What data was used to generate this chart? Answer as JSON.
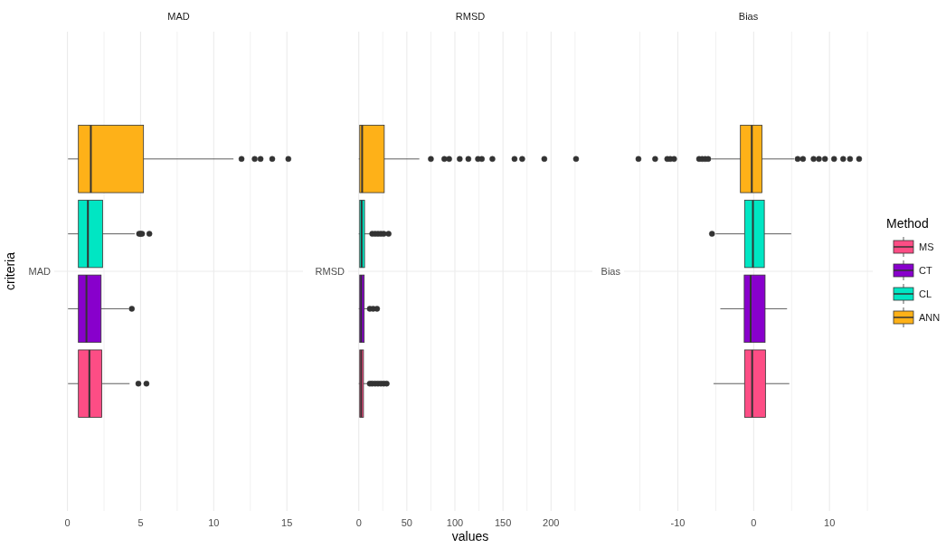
{
  "chart_data": [
    {
      "type": "box",
      "title": "MAD",
      "ylabel": "criteria",
      "orientation": "horizontal",
      "categories": [
        "MAD"
      ],
      "xlim": [
        -0.9,
        16.1
      ],
      "xticks": [
        0,
        {
          "value": 2.5,
          "label": null
        },
        5,
        {
          "value": 7.5,
          "label": null
        },
        10,
        {
          "value": 12.5,
          "label": null
        },
        15
      ],
      "grid": true,
      "series": [
        {
          "color": "#fd4d85",
          "boxes": [
            {
              "low": 0.04,
              "q1": 0.75,
              "median": 1.5,
              "q3": 2.35,
              "high": 4.25,
              "outliers": [
                4.85,
                5.4
              ]
            }
          ]
        },
        {
          "color": "#8800cc",
          "boxes": [
            {
              "low": 0.04,
              "q1": 0.75,
              "median": 1.3,
              "q3": 2.3,
              "high": 4.2,
              "outliers": [
                4.4
              ]
            }
          ]
        },
        {
          "color": "#00e6c3",
          "boxes": [
            {
              "low": 0.04,
              "q1": 0.75,
              "median": 1.4,
              "q3": 2.4,
              "high": 4.6,
              "outliers": [
                4.9,
                5.0,
                5.1,
                5.6
              ]
            }
          ]
        },
        {
          "color": "#feb118",
          "boxes": [
            {
              "low": 0.04,
              "q1": 0.75,
              "median": 1.6,
              "q3": 5.2,
              "high": 11.35,
              "outliers": [
                11.9,
                12.8,
                13.2,
                14.0,
                15.1
              ]
            }
          ]
        }
      ]
    },
    {
      "type": "box",
      "title": "RMSD",
      "xlabel": "values",
      "orientation": "horizontal",
      "categories": [
        "RMSD"
      ],
      "xlim": [
        -11,
        243
      ],
      "xticks": [
        0,
        {
          "value": 25,
          "label": null
        },
        50,
        {
          "value": 75,
          "label": null
        },
        100,
        {
          "value": 125,
          "label": null
        },
        150,
        {
          "value": 175,
          "label": null
        },
        200,
        {
          "value": 225,
          "label": null
        }
      ],
      "grid": true,
      "series": [
        {
          "color": "#fd4d85",
          "boxes": [
            {
              "low": 0,
              "q1": 1,
              "median": 2.5,
              "q3": 4.9,
              "high": 9.6,
              "outliers": [
                11.5,
                14,
                17,
                20,
                23,
                26,
                29
              ]
            }
          ]
        },
        {
          "color": "#8800cc",
          "boxes": [
            {
              "low": 0,
              "q1": 1,
              "median": 2.5,
              "q3": 5.6,
              "high": 9.3,
              "outliers": [
                11.5,
                15,
                19
              ]
            }
          ]
        },
        {
          "color": "#00e6c3",
          "boxes": [
            {
              "low": 0,
              "q1": 1,
              "median": 3,
              "q3": 6,
              "high": 12,
              "outliers": [
                14,
                17,
                20,
                23,
                26,
                31
              ]
            }
          ]
        },
        {
          "color": "#feb118",
          "boxes": [
            {
              "low": 0,
              "q1": 1,
              "median": 3.5,
              "q3": 26.5,
              "high": 63,
              "outliers": [
                75,
                89,
                94,
                105,
                114,
                124,
                128,
                139,
                162,
                170,
                193,
                226
              ]
            }
          ]
        }
      ]
    },
    {
      "type": "box",
      "title": "Bias",
      "legend_title": "Method",
      "legend": "right",
      "orientation": "horizontal",
      "categories": [
        "Bias"
      ],
      "xlim": [
        -17.1,
        15.7
      ],
      "xticks": [
        {
          "value": -15,
          "label": null
        },
        -10,
        {
          "value": -5,
          "label": null
        },
        0,
        {
          "value": 5,
          "label": null
        },
        10,
        {
          "value": 15,
          "label": null
        }
      ],
      "grid": true,
      "series": [
        {
          "name": "MS",
          "color": "#fd4d85",
          "boxes": [
            {
              "low": -5.3,
              "q1": -1.2,
              "median": -0.2,
              "q3": 1.55,
              "high": 4.7
            }
          ]
        },
        {
          "name": "CT",
          "color": "#8800cc",
          "boxes": [
            {
              "low": -4.4,
              "q1": -1.25,
              "median": -0.4,
              "q3": 1.5,
              "high": 4.4
            }
          ]
        },
        {
          "name": "CL",
          "color": "#00e6c3",
          "boxes": [
            {
              "low": -5.0,
              "q1": -1.2,
              "median": -0.1,
              "q3": 1.4,
              "high": 4.95,
              "outliers": [
                -5.5
              ]
            }
          ]
        },
        {
          "name": "ANN",
          "color": "#feb118",
          "boxes": [
            {
              "low": -5.6,
              "q1": -1.75,
              "median": -0.25,
              "q3": 1.1,
              "high": 5.35,
              "outliers": [
                -15.2,
                -13,
                -11.4,
                -11,
                -10.5,
                -7.2,
                -6.8,
                -6.4,
                -6,
                5.8,
                6.5,
                7.9,
                8.6,
                9.4,
                10.6,
                11.8,
                12.7,
                13.9
              ]
            }
          ]
        }
      ]
    }
  ]
}
